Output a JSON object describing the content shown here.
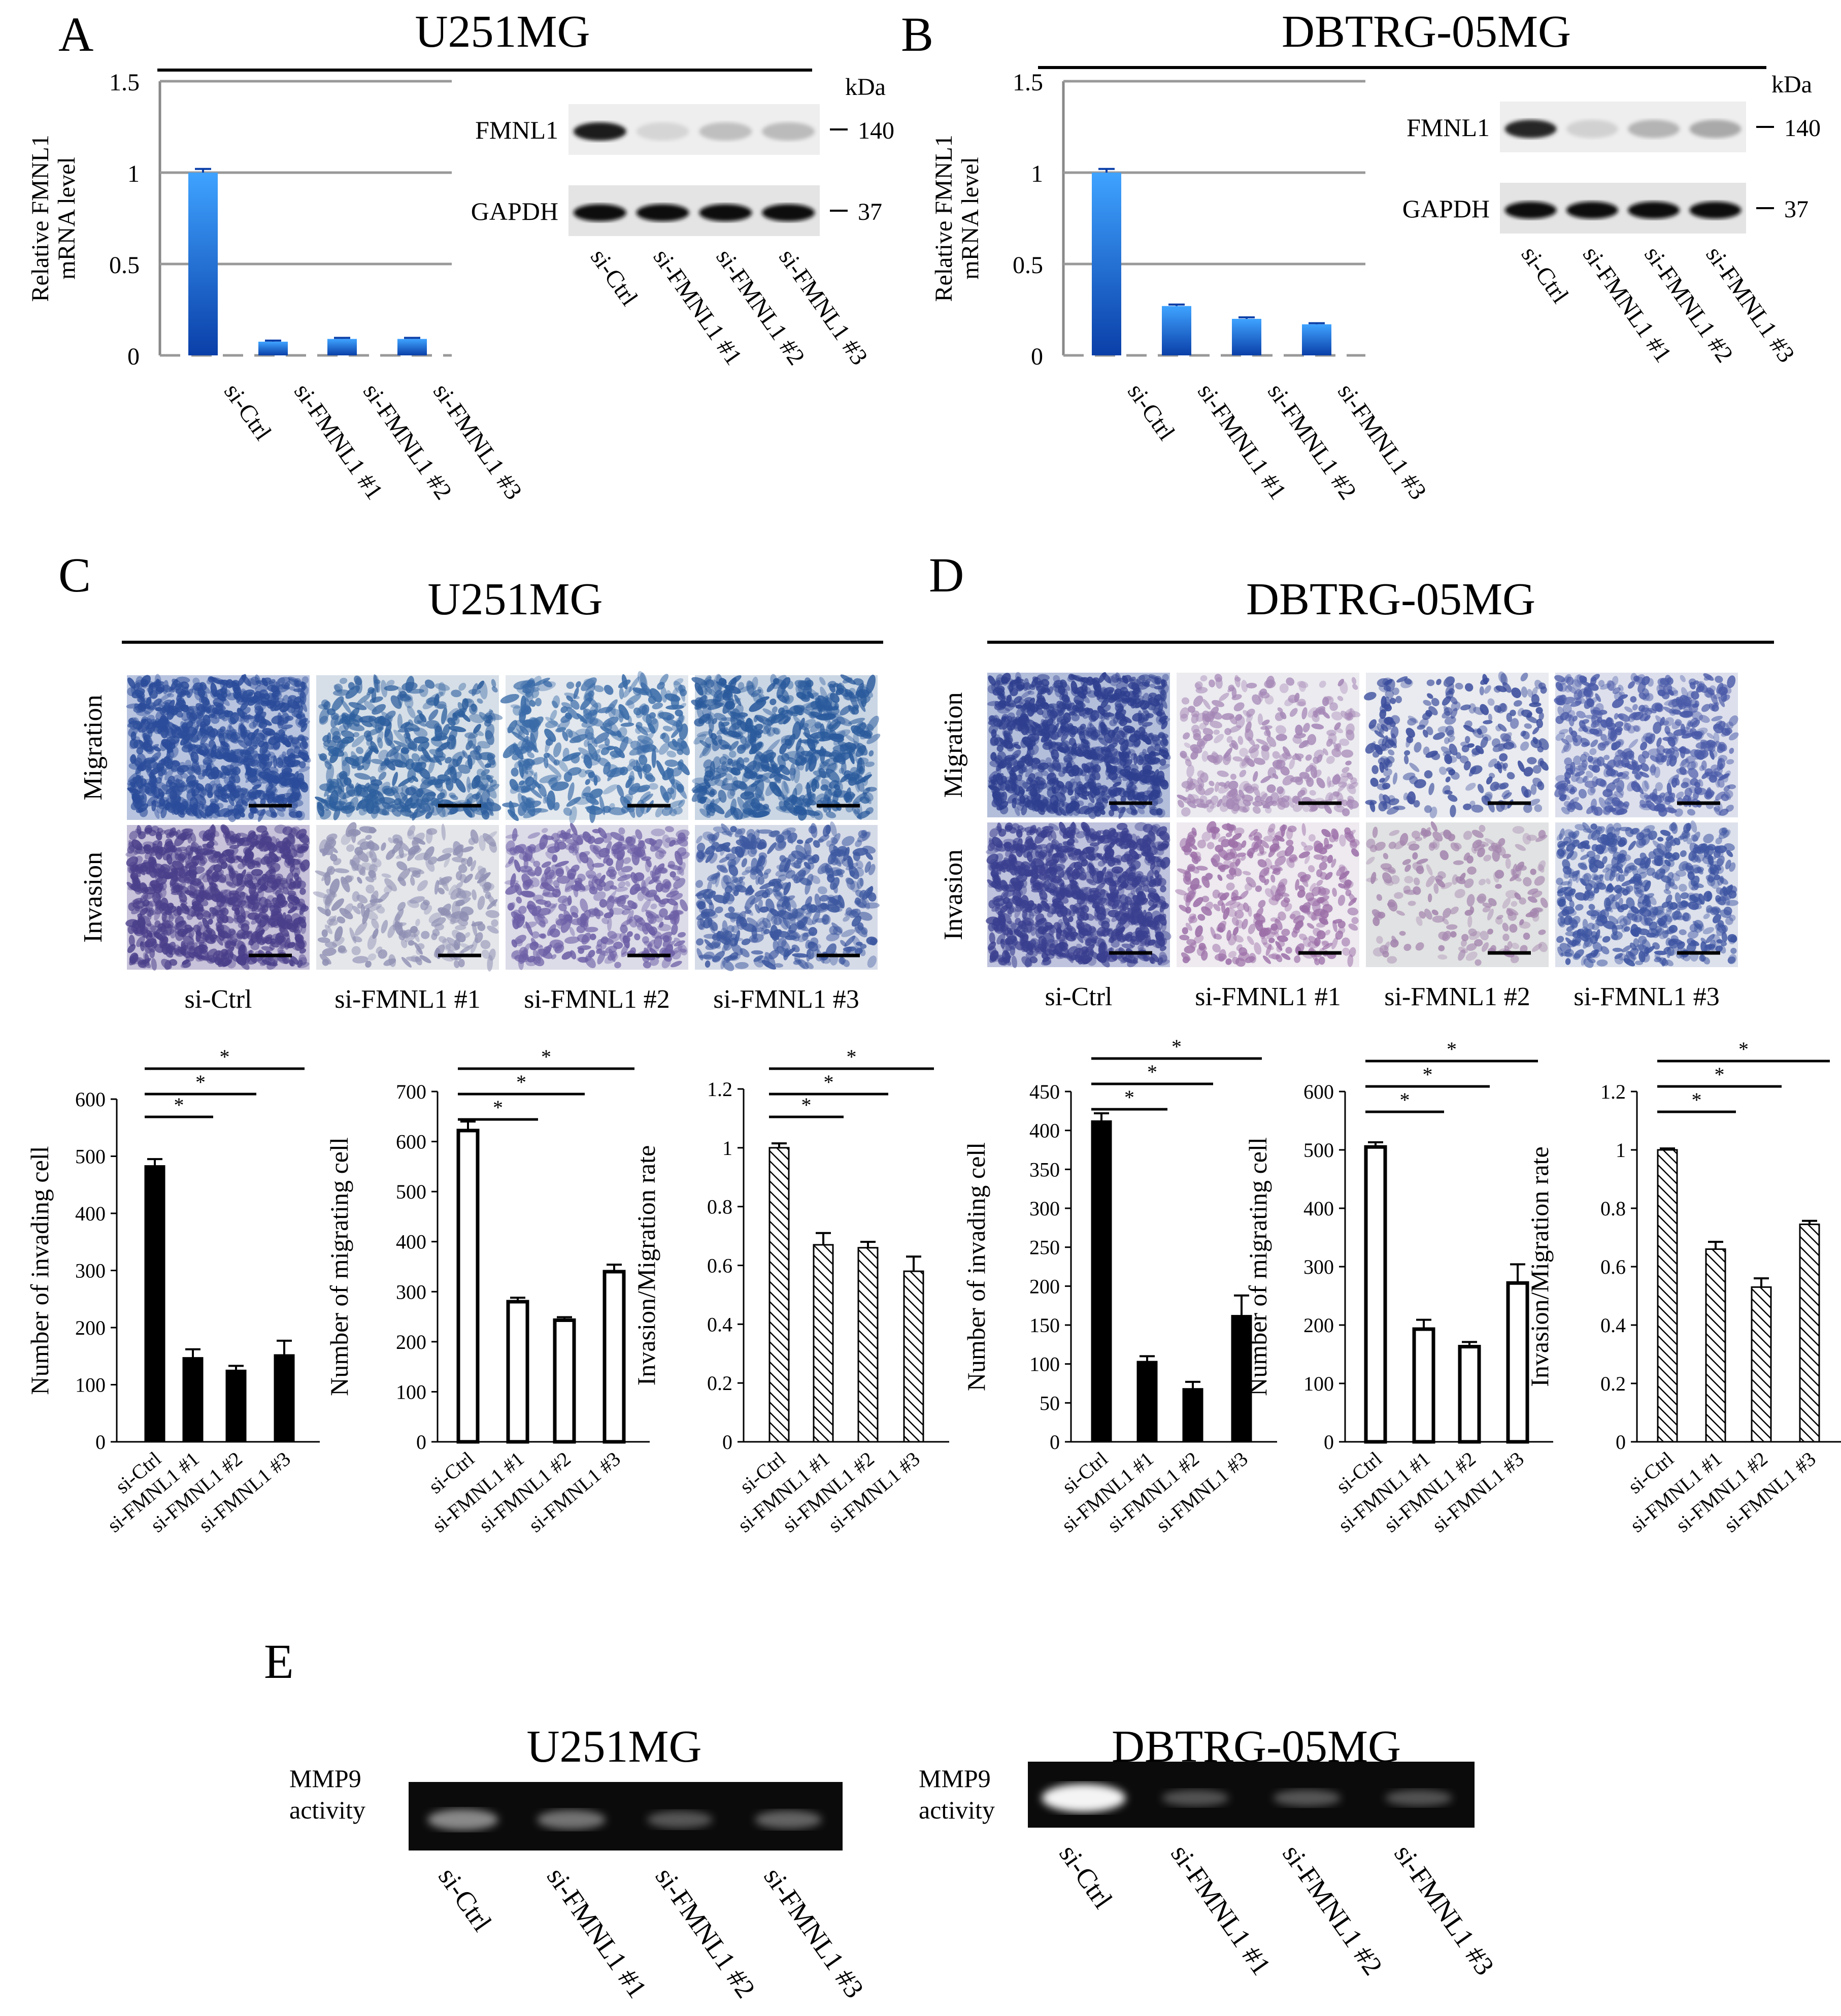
{
  "panels": {
    "A": {
      "letter": "A",
      "title": "U251MG",
      "chart": {
        "type": "bar",
        "ylabel_line1": "Relative FMNL1",
        "ylabel_line2": "mRNA level",
        "yticks": [
          "1.5",
          "1",
          "0.5",
          "0"
        ],
        "ylim": [
          0,
          1.5
        ],
        "categories": [
          "si-Ctrl",
          "si-FMNL1 #1",
          "si-FMNL1 #2",
          "si-FMNL1 #3"
        ],
        "values": [
          1.0,
          0.075,
          0.09,
          0.09
        ],
        "errors": [
          0.02,
          0.006,
          0.006,
          0.006
        ]
      },
      "blot": {
        "kda": "kDa",
        "rows": [
          {
            "label": "FMNL1",
            "marker": "140"
          },
          {
            "label": "GAPDH",
            "marker": "37"
          }
        ],
        "lanes": [
          "si-Ctrl",
          "si-FMNL1 #1",
          "si-FMNL1 #2",
          "si-FMNL1 #3"
        ]
      }
    },
    "B": {
      "letter": "B",
      "title": "DBTRG-05MG",
      "chart": {
        "type": "bar",
        "ylabel_line1": "Relative FMNL1",
        "ylabel_line2": "mRNA level",
        "yticks": [
          "1.5",
          "1",
          "0.5",
          "0"
        ],
        "ylim": [
          0,
          1.5
        ],
        "categories": [
          "si-Ctrl",
          "si-FMNL1 #1",
          "si-FMNL1 #2",
          "si-FMNL1 #3"
        ],
        "values": [
          1.0,
          0.27,
          0.2,
          0.17
        ],
        "errors": [
          0.02,
          0.008,
          0.008,
          0.006
        ]
      },
      "blot": {
        "kda": "kDa",
        "rows": [
          {
            "label": "FMNL1",
            "marker": "140"
          },
          {
            "label": "GAPDH",
            "marker": "37"
          }
        ],
        "lanes": [
          "si-Ctrl",
          "si-FMNL1 #1",
          "si-FMNL1 #2",
          "si-FMNL1 #3"
        ]
      }
    },
    "C": {
      "letter": "C",
      "title": "U251MG",
      "row_labels": [
        "Migration",
        "Invasion"
      ],
      "col_labels": [
        "si-Ctrl",
        "si-FMNL1 #1",
        "si-FMNL1 #2",
        "si-FMNL1 #3"
      ]
    },
    "D": {
      "letter": "D",
      "title": "DBTRG-05MG",
      "row_labels": [
        "Migration",
        "Invasion"
      ],
      "col_labels": [
        "si-Ctrl",
        "si-FMNL1 #1",
        "si-FMNL1 #2",
        "si-FMNL1 #3"
      ]
    },
    "E": {
      "letter": "E",
      "gels": [
        {
          "title": "U251MG",
          "label_line1": "MMP9",
          "label_line2": "activity",
          "lanes": [
            "si-Ctrl",
            "si-FMNL1 #1",
            "si-FMNL1 #2",
            "si-FMNL1 #3"
          ]
        },
        {
          "title": "DBTRG-05MG",
          "label_line1": "MMP9",
          "label_line2": "activity",
          "lanes": [
            "si-Ctrl",
            "si-FMNL1 #1",
            "si-FMNL1 #2",
            "si-FMNL1 #3"
          ]
        }
      ]
    }
  },
  "chart_data": [
    {
      "type": "bar",
      "panel": "A",
      "title": "U251MG",
      "ylabel": "Relative FMNL1 mRNA level",
      "categories": [
        "si-Ctrl",
        "si-FMNL1 #1",
        "si-FMNL1 #2",
        "si-FMNL1 #3"
      ],
      "values": [
        1.0,
        0.075,
        0.09,
        0.09
      ],
      "ylim": [
        0,
        1.5
      ]
    },
    {
      "type": "bar",
      "panel": "B",
      "title": "DBTRG-05MG",
      "ylabel": "Relative FMNL1 mRNA level",
      "categories": [
        "si-Ctrl",
        "si-FMNL1 #1",
        "si-FMNL1 #2",
        "si-FMNL1 #3"
      ],
      "values": [
        1.0,
        0.27,
        0.2,
        0.17
      ],
      "ylim": [
        0,
        1.5
      ]
    },
    {
      "type": "bar",
      "panel": "C",
      "ylabel": "Number of invading cell",
      "categories": [
        "si-Ctrl",
        "si-FMNL1 #1",
        "si-FMNL1 #2",
        "si-FMNL1 #3"
      ],
      "values": [
        483,
        147,
        125,
        152
      ],
      "errors": [
        12,
        15,
        8,
        25
      ],
      "yticks": [
        "0",
        "100",
        "200",
        "300",
        "400",
        "500",
        "600"
      ],
      "ylim": [
        0,
        600
      ],
      "fill": "solid"
    },
    {
      "type": "bar",
      "panel": "C",
      "ylabel": "Number of migrating cell",
      "categories": [
        "si-Ctrl",
        "si-FMNL1 #1",
        "si-FMNL1 #2",
        "si-FMNL1 #3"
      ],
      "values": [
        622,
        280,
        243,
        340
      ],
      "errors": [
        18,
        8,
        6,
        14
      ],
      "yticks": [
        "0",
        "100",
        "200",
        "300",
        "400",
        "500",
        "600",
        "700"
      ],
      "ylim": [
        0,
        700
      ],
      "fill": "open"
    },
    {
      "type": "bar",
      "panel": "C",
      "ylabel": "Invasion/Migration rate",
      "categories": [
        "si-Ctrl",
        "si-FMNL1 #1",
        "si-FMNL1 #2",
        "si-FMNL1 #3"
      ],
      "values": [
        1.0,
        0.67,
        0.66,
        0.58
      ],
      "errors": [
        0.015,
        0.04,
        0.02,
        0.05
      ],
      "yticks": [
        "0",
        "0.2",
        "0.4",
        "0.6",
        "0.8",
        "1",
        "1.2"
      ],
      "ylim": [
        0,
        1.2
      ],
      "fill": "hatch"
    },
    {
      "type": "bar",
      "panel": "D",
      "ylabel": "Number of invading cell",
      "categories": [
        "si-Ctrl",
        "si-FMNL1 #1",
        "si-FMNL1 #2",
        "si-FMNL1 #3"
      ],
      "values": [
        412,
        103,
        68,
        162
      ],
      "errors": [
        10,
        7,
        9,
        26
      ],
      "yticks": [
        "0",
        "50",
        "100",
        "150",
        "200",
        "250",
        "300",
        "350",
        "400",
        "450"
      ],
      "ylim": [
        0,
        450
      ],
      "fill": "solid"
    },
    {
      "type": "bar",
      "panel": "D",
      "ylabel": "Number of migrating cell",
      "categories": [
        "si-Ctrl",
        "si-FMNL1 #1",
        "si-FMNL1 #2",
        "si-FMNL1 #3"
      ],
      "values": [
        505,
        193,
        163,
        272
      ],
      "errors": [
        8,
        16,
        8,
        32
      ],
      "yticks": [
        "0",
        "100",
        "200",
        "300",
        "400",
        "500",
        "600"
      ],
      "ylim": [
        0,
        600
      ],
      "fill": "open"
    },
    {
      "type": "bar",
      "panel": "D",
      "ylabel": "Invasion/Migration rate",
      "categories": [
        "si-Ctrl",
        "si-FMNL1 #1",
        "si-FMNL1 #2",
        "si-FMNL1 #3"
      ],
      "values": [
        1.0,
        0.66,
        0.53,
        0.745
      ],
      "errors": [
        0.005,
        0.025,
        0.03,
        0.012
      ],
      "yticks": [
        "0",
        "0.2",
        "0.4",
        "0.6",
        "0.8",
        "1",
        "1.2"
      ],
      "ylim": [
        0,
        1.2
      ],
      "fill": "hatch"
    }
  ],
  "significance_mark": "*"
}
